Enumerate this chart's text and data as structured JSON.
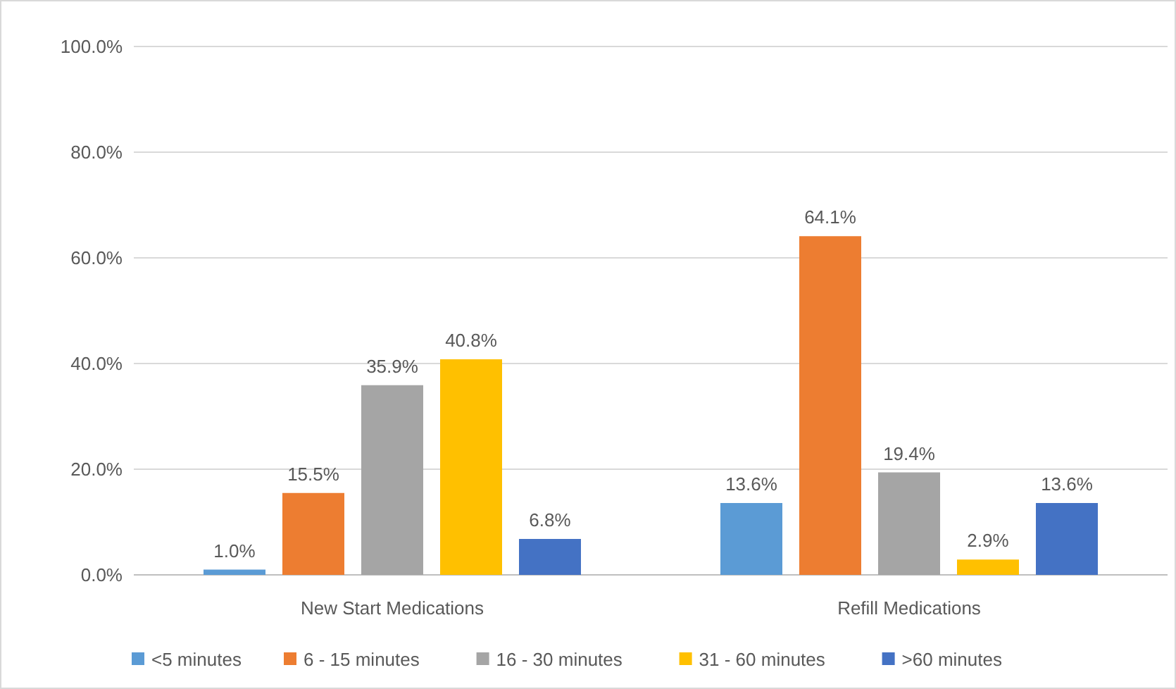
{
  "chart_data": {
    "type": "bar",
    "categories": [
      "New Start Medications",
      "Refill Medications"
    ],
    "series": [
      {
        "name": "<5 minutes",
        "color": "#5b9bd5",
        "values": [
          1.0,
          13.6
        ],
        "value_labels": [
          "1.0%",
          "13.6%"
        ]
      },
      {
        "name": "6 - 15 minutes",
        "color": "#ed7d31",
        "values": [
          15.5,
          64.1
        ],
        "value_labels": [
          "15.5%",
          "64.1%"
        ]
      },
      {
        "name": "16 - 30 minutes",
        "color": "#a5a5a5",
        "values": [
          35.9,
          19.4
        ],
        "value_labels": [
          "35.9%",
          "19.4%"
        ]
      },
      {
        "name": "31 - 60 minutes",
        "color": "#ffc000",
        "values": [
          40.8,
          2.9
        ],
        "value_labels": [
          "40.8%",
          "2.9%"
        ]
      },
      {
        "name": ">60 minutes",
        "color": "#4472c4",
        "values": [
          6.8,
          13.6
        ],
        "value_labels": [
          "6.8%",
          "13.6%"
        ]
      }
    ],
    "ylim": [
      0,
      100
    ],
    "yticks": [
      {
        "value": 0,
        "label": "0.0%"
      },
      {
        "value": 20,
        "label": "20.0%"
      },
      {
        "value": 40,
        "label": "40.0%"
      },
      {
        "value": 60,
        "label": "60.0%"
      },
      {
        "value": 80,
        "label": "80.0%"
      },
      {
        "value": 100,
        "label": "100.0%"
      }
    ],
    "grid": "y",
    "legend": "bottom"
  }
}
